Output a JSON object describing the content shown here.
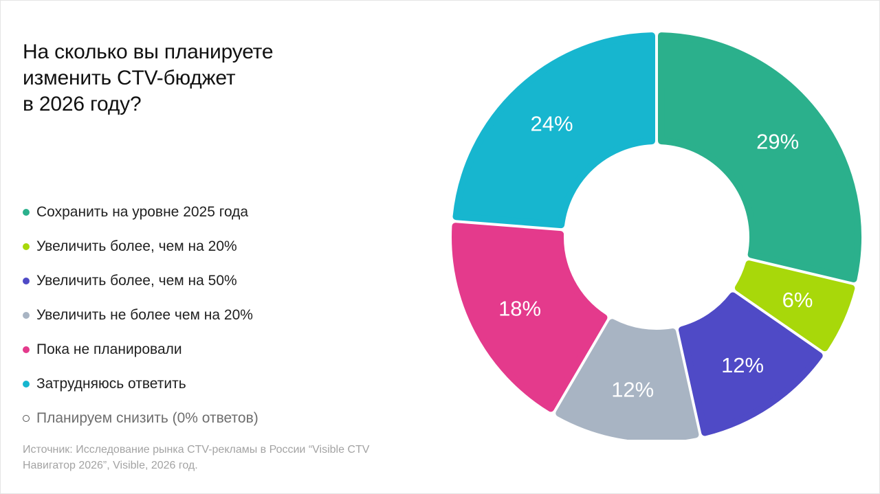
{
  "title_lines": [
    "На сколько вы планируете",
    "изменить CTV-бюджет",
    "в 2026 году?"
  ],
  "chart_data": {
    "type": "pie",
    "donut": true,
    "slices": [
      {
        "label": "Сохранить на уровне 2025 года",
        "value": 29,
        "value_label": "29%",
        "color": "#2bb08c"
      },
      {
        "label": "Увеличить более, чем на 20%",
        "value": 6,
        "value_label": "6%",
        "color": "#a8d80a"
      },
      {
        "label": "Увеличить более, чем на 50%",
        "value": 12,
        "value_label": "12%",
        "color": "#4f4ac6"
      },
      {
        "label": "Увеличить не более чем на 20%",
        "value": 12,
        "value_label": "12%",
        "color": "#a8b4c3"
      },
      {
        "label": "Пока не планировали",
        "value": 18,
        "value_label": "18%",
        "color": "#e43a8c"
      },
      {
        "label": "Затрудняюсь ответить",
        "value": 24,
        "value_label": "24%",
        "color": "#17b6cf"
      }
    ],
    "extra_legend": {
      "label": "Планируем снизить (0% ответов)",
      "value": 0,
      "color": "none"
    }
  },
  "source_lines": [
    "Источник: Исследование рынка CTV-рекламы в России “Visible CTV",
    "Навигатор 2026”, Visible, 2026 год."
  ]
}
